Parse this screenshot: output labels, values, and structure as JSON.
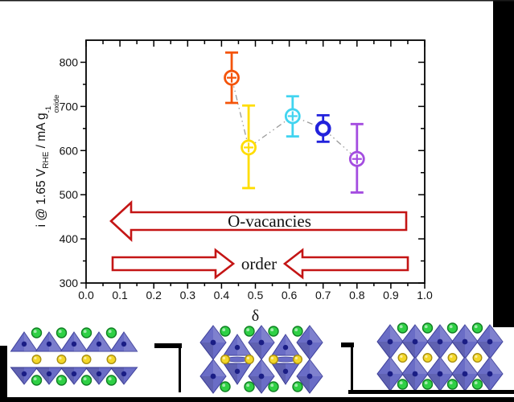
{
  "chart_data": {
    "type": "scatter",
    "title": "",
    "xlabel": "δ",
    "ylabel_parts": {
      "p1": "i @ 1.65 V",
      "s1": "RHE",
      "p2": " / mA g",
      "sup": "-1",
      "s2": "oxide"
    },
    "xlim": [
      0.0,
      1.0
    ],
    "ylim": [
      300,
      850
    ],
    "xticks": [
      {
        "v": 0.0,
        "label": "0.0"
      },
      {
        "v": 0.1,
        "label": "0.1"
      },
      {
        "v": 0.2,
        "label": "0.2"
      },
      {
        "v": 0.3,
        "label": "0.3"
      },
      {
        "v": 0.4,
        "label": "0.4"
      },
      {
        "v": 0.5,
        "label": "0.5"
      },
      {
        "v": 0.6,
        "label": "0.6"
      },
      {
        "v": 0.7,
        "label": "0.7"
      },
      {
        "v": 0.8,
        "label": "0.8"
      },
      {
        "v": 0.9,
        "label": "0.9"
      },
      {
        "v": 1.0,
        "label": "1.0"
      }
    ],
    "yticks": [
      {
        "v": 300,
        "label": "300"
      },
      {
        "v": 400,
        "label": "400"
      },
      {
        "v": 500,
        "label": "500"
      },
      {
        "v": 600,
        "label": "600"
      },
      {
        "v": 700,
        "label": "700"
      },
      {
        "v": 800,
        "label": "800"
      }
    ],
    "grid": false,
    "line_style": "gray dash-dot-dot connecting line",
    "points": [
      {
        "delta": 0.43,
        "i": 765,
        "err_plus": 57,
        "err_minus": 57,
        "color": "#f4540a",
        "marker": "circle-plus",
        "name": "orange"
      },
      {
        "delta": 0.48,
        "i": 607,
        "err_plus": 95,
        "err_minus": 92,
        "color": "#ffdd00",
        "marker": "circle-plus",
        "name": "yellow"
      },
      {
        "delta": 0.61,
        "i": 678,
        "err_plus": 45,
        "err_minus": 46,
        "color": "#41d4f0",
        "marker": "circle-plus",
        "name": "cyan"
      },
      {
        "delta": 0.7,
        "i": 650,
        "err_plus": 30,
        "err_minus": 30,
        "color": "#2222dc",
        "marker": "circle",
        "name": "blue"
      },
      {
        "delta": 0.8,
        "i": 581,
        "err_plus": 79,
        "err_minus": 76,
        "color": "#a44de0",
        "marker": "circle-plus",
        "name": "violet"
      }
    ],
    "annotations": [
      {
        "text": "O-vacancies",
        "arrow": "left-pointing outlined arrow"
      },
      {
        "text": "order",
        "arrow": "two arrows pointing toward each other"
      }
    ],
    "annotation_color": "#c41515"
  },
  "structures": {
    "octahedron_color": "#6a6dc6",
    "octahedron_edge": "#3e409b",
    "center_dot_color": "#1a1d85",
    "a_site_color": "#2fd045",
    "a_site_edge": "#118024",
    "b_site_color": "#f3d728",
    "b_site_edge": "#a98f10",
    "panels": [
      {
        "pattern": "triangle-rows",
        "name": "fully-vacancy-ordered-structure"
      },
      {
        "pattern": "alternating",
        "name": "partially-ordered-structure"
      },
      {
        "pattern": "full-grid",
        "name": "full-octahedra-structure"
      }
    ]
  }
}
